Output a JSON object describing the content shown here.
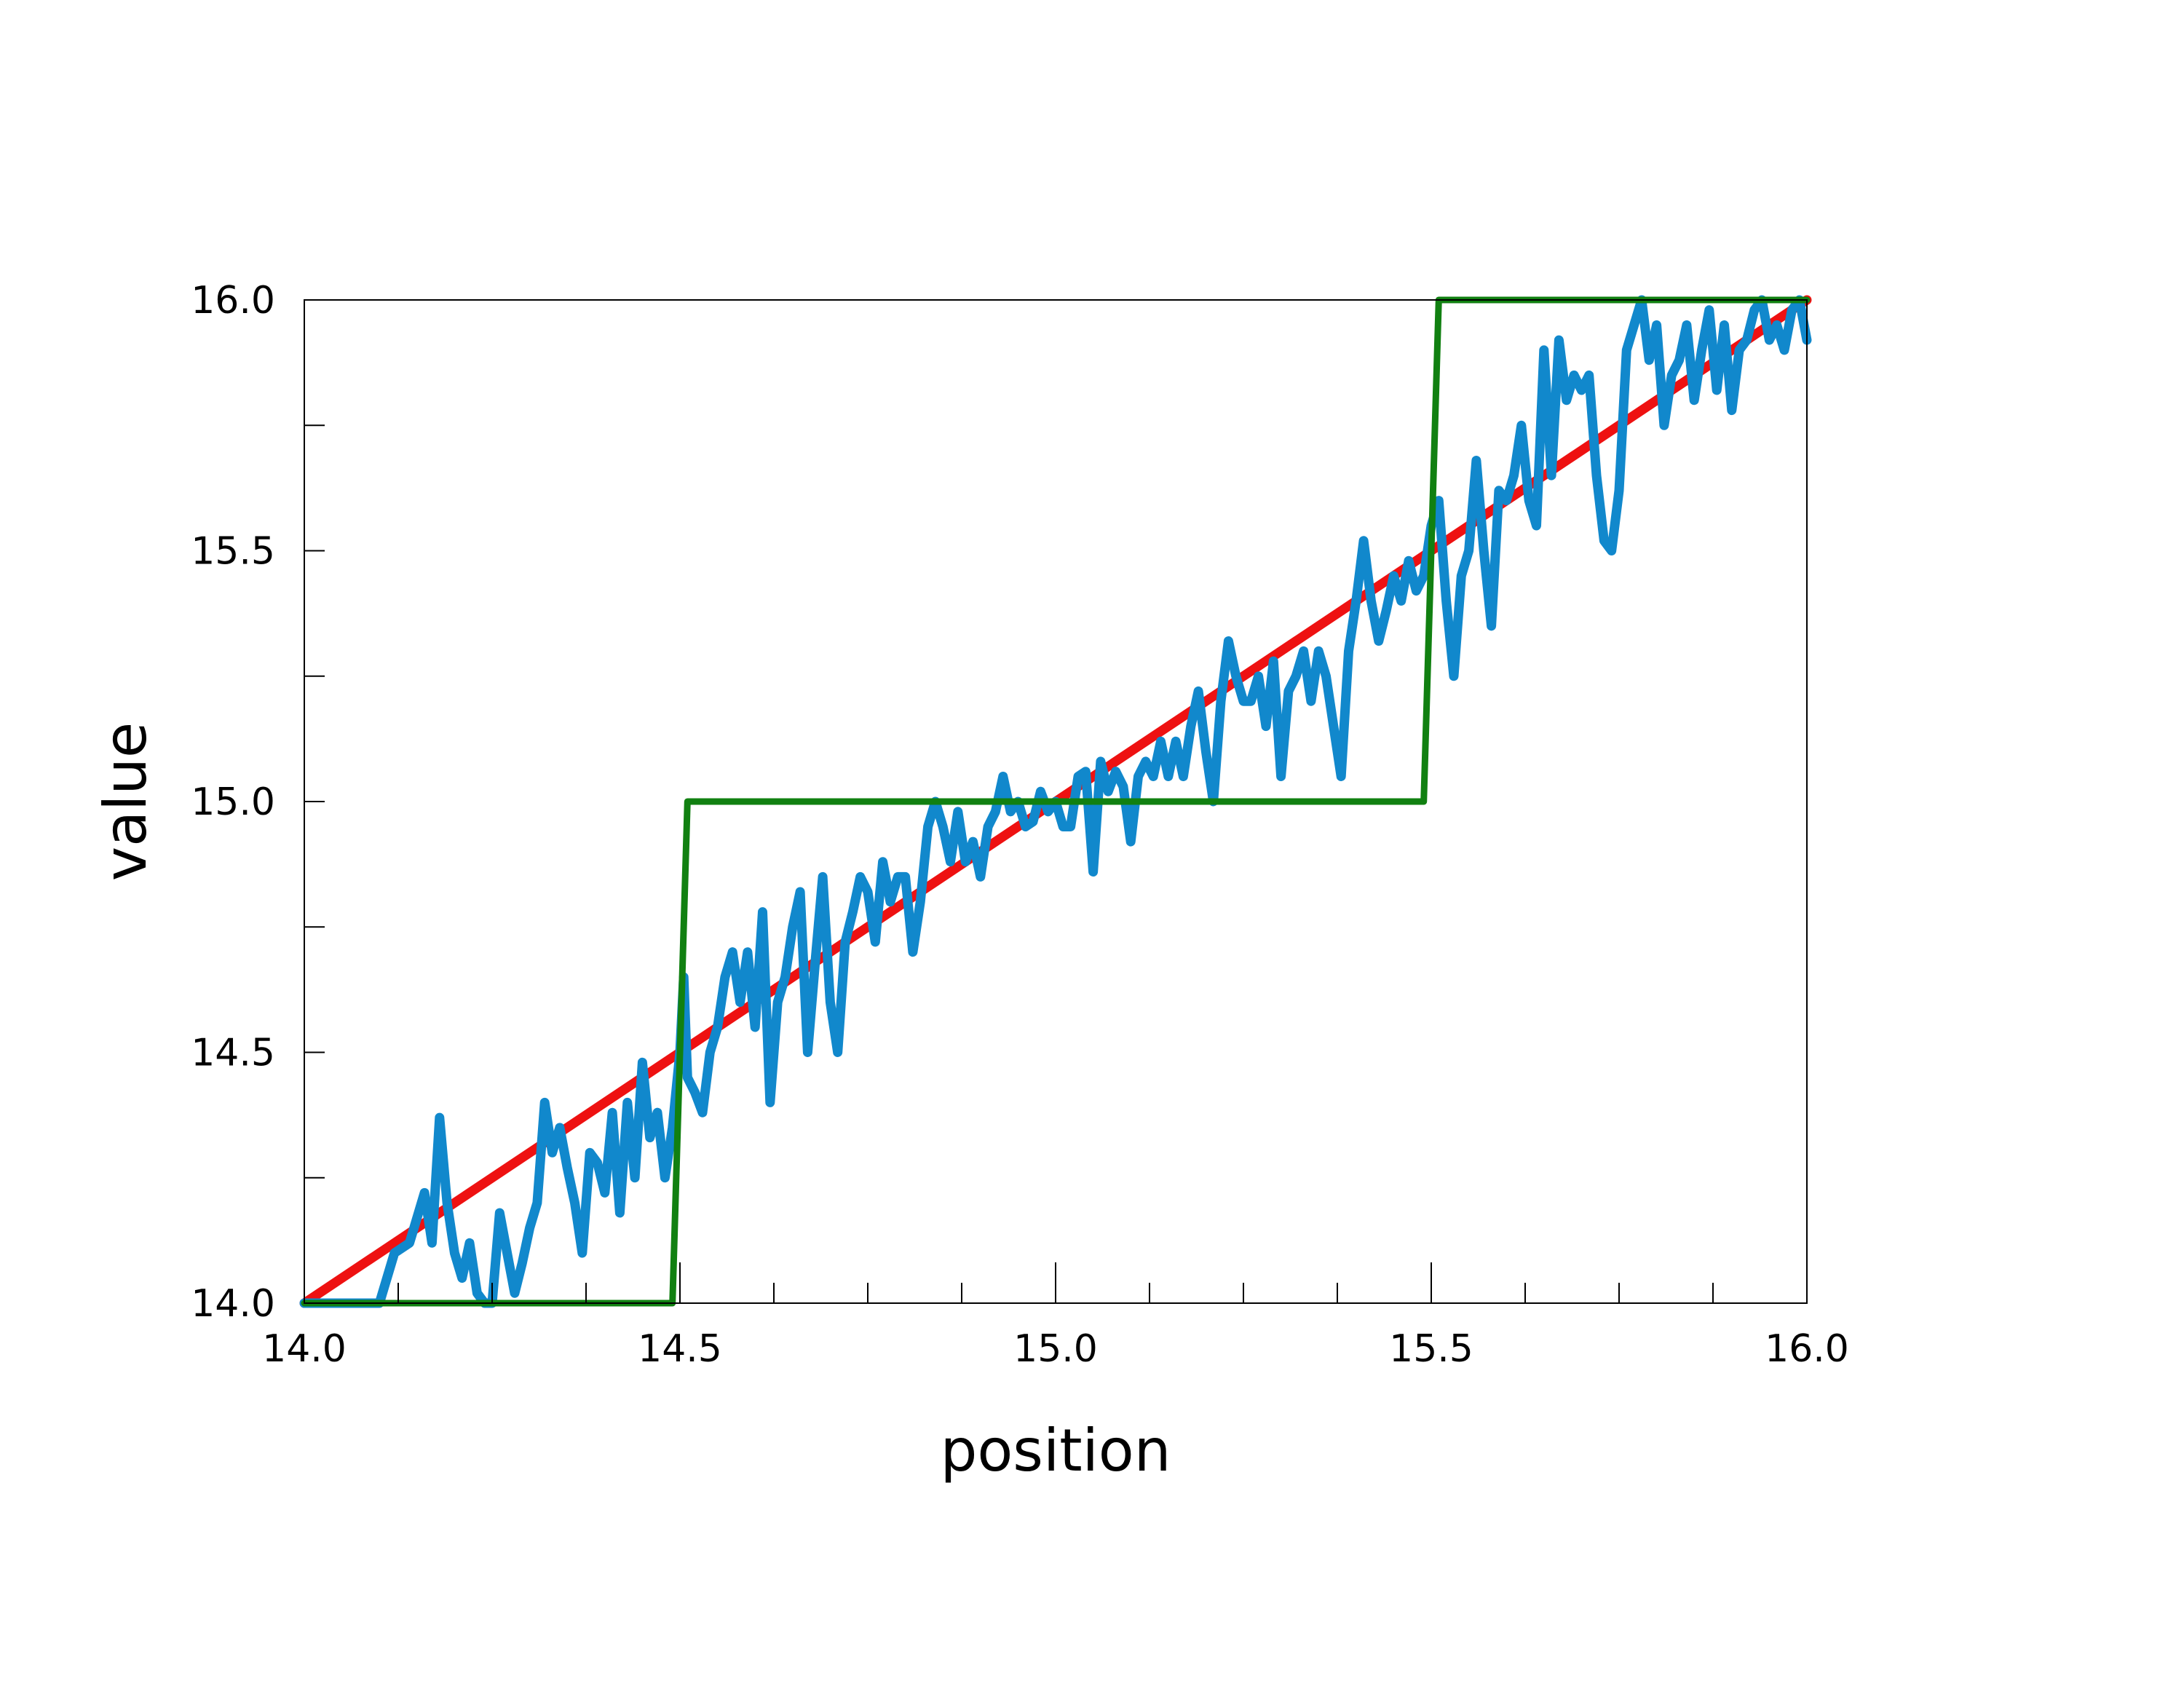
{
  "chart_data": {
    "type": "line",
    "xlabel": "position",
    "ylabel": "value",
    "xlim": [
      14.0,
      16.0
    ],
    "ylim": [
      14.0,
      16.0
    ],
    "x_ticks": [
      "14.0",
      "14.5",
      "15.0",
      "15.5",
      "16.0"
    ],
    "y_ticks": [
      "14.0",
      "14.5",
      "15.0",
      "15.5",
      "16.0"
    ],
    "x_minor_step": 0.125,
    "y_minor_step": 0.25,
    "grid": false,
    "legend": "none",
    "series": [
      {
        "color": "#ee1111",
        "points": [
          [
            14.0,
            14.0
          ],
          [
            16.0,
            16.0
          ]
        ]
      },
      {
        "color": "#1188cc",
        "points": [
          [
            14.0,
            14.0
          ],
          [
            14.04,
            14.0
          ],
          [
            14.08,
            14.0
          ],
          [
            14.1,
            14.0
          ],
          [
            14.12,
            14.1
          ],
          [
            14.14,
            14.12
          ],
          [
            14.16,
            14.22
          ],
          [
            14.17,
            14.12
          ],
          [
            14.18,
            14.37
          ],
          [
            14.19,
            14.2
          ],
          [
            14.2,
            14.1
          ],
          [
            14.21,
            14.05
          ],
          [
            14.22,
            14.12
          ],
          [
            14.23,
            14.02
          ],
          [
            14.24,
            14.0
          ],
          [
            14.25,
            14.0
          ],
          [
            14.26,
            14.18
          ],
          [
            14.27,
            14.1
          ],
          [
            14.28,
            14.02
          ],
          [
            14.29,
            14.08
          ],
          [
            14.3,
            14.15
          ],
          [
            14.31,
            14.2
          ],
          [
            14.32,
            14.4
          ],
          [
            14.33,
            14.3
          ],
          [
            14.34,
            14.35
          ],
          [
            14.35,
            14.27
          ],
          [
            14.36,
            14.2
          ],
          [
            14.37,
            14.1
          ],
          [
            14.38,
            14.3
          ],
          [
            14.39,
            14.28
          ],
          [
            14.4,
            14.22
          ],
          [
            14.41,
            14.38
          ],
          [
            14.42,
            14.18
          ],
          [
            14.43,
            14.4
          ],
          [
            14.44,
            14.25
          ],
          [
            14.45,
            14.48
          ],
          [
            14.46,
            14.33
          ],
          [
            14.47,
            14.38
          ],
          [
            14.48,
            14.25
          ],
          [
            14.49,
            14.35
          ],
          [
            14.5,
            14.5
          ],
          [
            14.505,
            14.65
          ],
          [
            14.51,
            14.45
          ],
          [
            14.52,
            14.42
          ],
          [
            14.53,
            14.38
          ],
          [
            14.54,
            14.5
          ],
          [
            14.55,
            14.55
          ],
          [
            14.56,
            14.65
          ],
          [
            14.57,
            14.7
          ],
          [
            14.58,
            14.6
          ],
          [
            14.59,
            14.7
          ],
          [
            14.6,
            14.55
          ],
          [
            14.61,
            14.78
          ],
          [
            14.62,
            14.4
          ],
          [
            14.63,
            14.6
          ],
          [
            14.64,
            14.65
          ],
          [
            14.65,
            14.75
          ],
          [
            14.66,
            14.82
          ],
          [
            14.67,
            14.5
          ],
          [
            14.68,
            14.68
          ],
          [
            14.69,
            14.85
          ],
          [
            14.7,
            14.6
          ],
          [
            14.71,
            14.5
          ],
          [
            14.72,
            14.72
          ],
          [
            14.73,
            14.78
          ],
          [
            14.74,
            14.85
          ],
          [
            14.75,
            14.82
          ],
          [
            14.76,
            14.72
          ],
          [
            14.77,
            14.88
          ],
          [
            14.78,
            14.8
          ],
          [
            14.79,
            14.85
          ],
          [
            14.8,
            14.85
          ],
          [
            14.81,
            14.7
          ],
          [
            14.82,
            14.8
          ],
          [
            14.83,
            14.95
          ],
          [
            14.84,
            15.0
          ],
          [
            14.85,
            14.95
          ],
          [
            14.86,
            14.88
          ],
          [
            14.87,
            14.98
          ],
          [
            14.88,
            14.88
          ],
          [
            14.89,
            14.92
          ],
          [
            14.9,
            14.85
          ],
          [
            14.91,
            14.95
          ],
          [
            14.92,
            14.98
          ],
          [
            14.93,
            15.05
          ],
          [
            14.94,
            14.98
          ],
          [
            14.95,
            15.0
          ],
          [
            14.96,
            14.95
          ],
          [
            14.97,
            14.96
          ],
          [
            14.98,
            15.02
          ],
          [
            14.99,
            14.98
          ],
          [
            15.0,
            15.0
          ],
          [
            15.01,
            14.95
          ],
          [
            15.02,
            14.95
          ],
          [
            15.03,
            15.05
          ],
          [
            15.04,
            15.06
          ],
          [
            15.05,
            14.86
          ],
          [
            15.06,
            15.08
          ],
          [
            15.07,
            15.02
          ],
          [
            15.08,
            15.06
          ],
          [
            15.09,
            15.03
          ],
          [
            15.1,
            14.92
          ],
          [
            15.11,
            15.05
          ],
          [
            15.12,
            15.08
          ],
          [
            15.13,
            15.05
          ],
          [
            15.14,
            15.12
          ],
          [
            15.15,
            15.05
          ],
          [
            15.16,
            15.12
          ],
          [
            15.17,
            15.05
          ],
          [
            15.18,
            15.15
          ],
          [
            15.19,
            15.22
          ],
          [
            15.2,
            15.1
          ],
          [
            15.21,
            15.0
          ],
          [
            15.22,
            15.2
          ],
          [
            15.23,
            15.32
          ],
          [
            15.24,
            15.25
          ],
          [
            15.25,
            15.2
          ],
          [
            15.26,
            15.2
          ],
          [
            15.27,
            15.25
          ],
          [
            15.28,
            15.15
          ],
          [
            15.29,
            15.28
          ],
          [
            15.3,
            15.05
          ],
          [
            15.31,
            15.22
          ],
          [
            15.32,
            15.25
          ],
          [
            15.33,
            15.3
          ],
          [
            15.34,
            15.2
          ],
          [
            15.35,
            15.3
          ],
          [
            15.36,
            15.25
          ],
          [
            15.37,
            15.15
          ],
          [
            15.38,
            15.05
          ],
          [
            15.39,
            15.3
          ],
          [
            15.4,
            15.4
          ],
          [
            15.41,
            15.52
          ],
          [
            15.42,
            15.4
          ],
          [
            15.43,
            15.32
          ],
          [
            15.44,
            15.38
          ],
          [
            15.45,
            15.45
          ],
          [
            15.46,
            15.4
          ],
          [
            15.47,
            15.48
          ],
          [
            15.48,
            15.42
          ],
          [
            15.49,
            15.45
          ],
          [
            15.5,
            15.55
          ],
          [
            15.51,
            15.6
          ],
          [
            15.52,
            15.4
          ],
          [
            15.53,
            15.25
          ],
          [
            15.54,
            15.45
          ],
          [
            15.55,
            15.5
          ],
          [
            15.56,
            15.68
          ],
          [
            15.57,
            15.5
          ],
          [
            15.58,
            15.35
          ],
          [
            15.59,
            15.62
          ],
          [
            15.6,
            15.6
          ],
          [
            15.61,
            15.65
          ],
          [
            15.62,
            15.75
          ],
          [
            15.63,
            15.6
          ],
          [
            15.64,
            15.55
          ],
          [
            15.65,
            15.9
          ],
          [
            15.66,
            15.65
          ],
          [
            15.67,
            15.92
          ],
          [
            15.68,
            15.8
          ],
          [
            15.69,
            15.85
          ],
          [
            15.7,
            15.82
          ],
          [
            15.71,
            15.85
          ],
          [
            15.72,
            15.65
          ],
          [
            15.73,
            15.52
          ],
          [
            15.74,
            15.5
          ],
          [
            15.75,
            15.62
          ],
          [
            15.76,
            15.9
          ],
          [
            15.77,
            15.95
          ],
          [
            15.78,
            16.0
          ],
          [
            15.79,
            15.88
          ],
          [
            15.8,
            15.95
          ],
          [
            15.81,
            15.75
          ],
          [
            15.82,
            15.85
          ],
          [
            15.83,
            15.88
          ],
          [
            15.84,
            15.95
          ],
          [
            15.85,
            15.8
          ],
          [
            15.86,
            15.9
          ],
          [
            15.87,
            15.98
          ],
          [
            15.88,
            15.82
          ],
          [
            15.89,
            15.95
          ],
          [
            15.9,
            15.78
          ],
          [
            15.91,
            15.9
          ],
          [
            15.92,
            15.92
          ],
          [
            15.93,
            15.98
          ],
          [
            15.94,
            16.0
          ],
          [
            15.95,
            15.92
          ],
          [
            15.96,
            15.95
          ],
          [
            15.97,
            15.9
          ],
          [
            15.98,
            15.98
          ],
          [
            15.99,
            16.0
          ],
          [
            16.0,
            15.92
          ]
        ]
      },
      {
        "color": "#118011",
        "points": [
          [
            14.0,
            14.0
          ],
          [
            14.49,
            14.0
          ],
          [
            14.5,
            14.5
          ],
          [
            14.51,
            15.0
          ],
          [
            15.49,
            15.0
          ],
          [
            15.5,
            15.5
          ],
          [
            15.51,
            16.0
          ],
          [
            16.0,
            16.0
          ]
        ]
      }
    ]
  }
}
